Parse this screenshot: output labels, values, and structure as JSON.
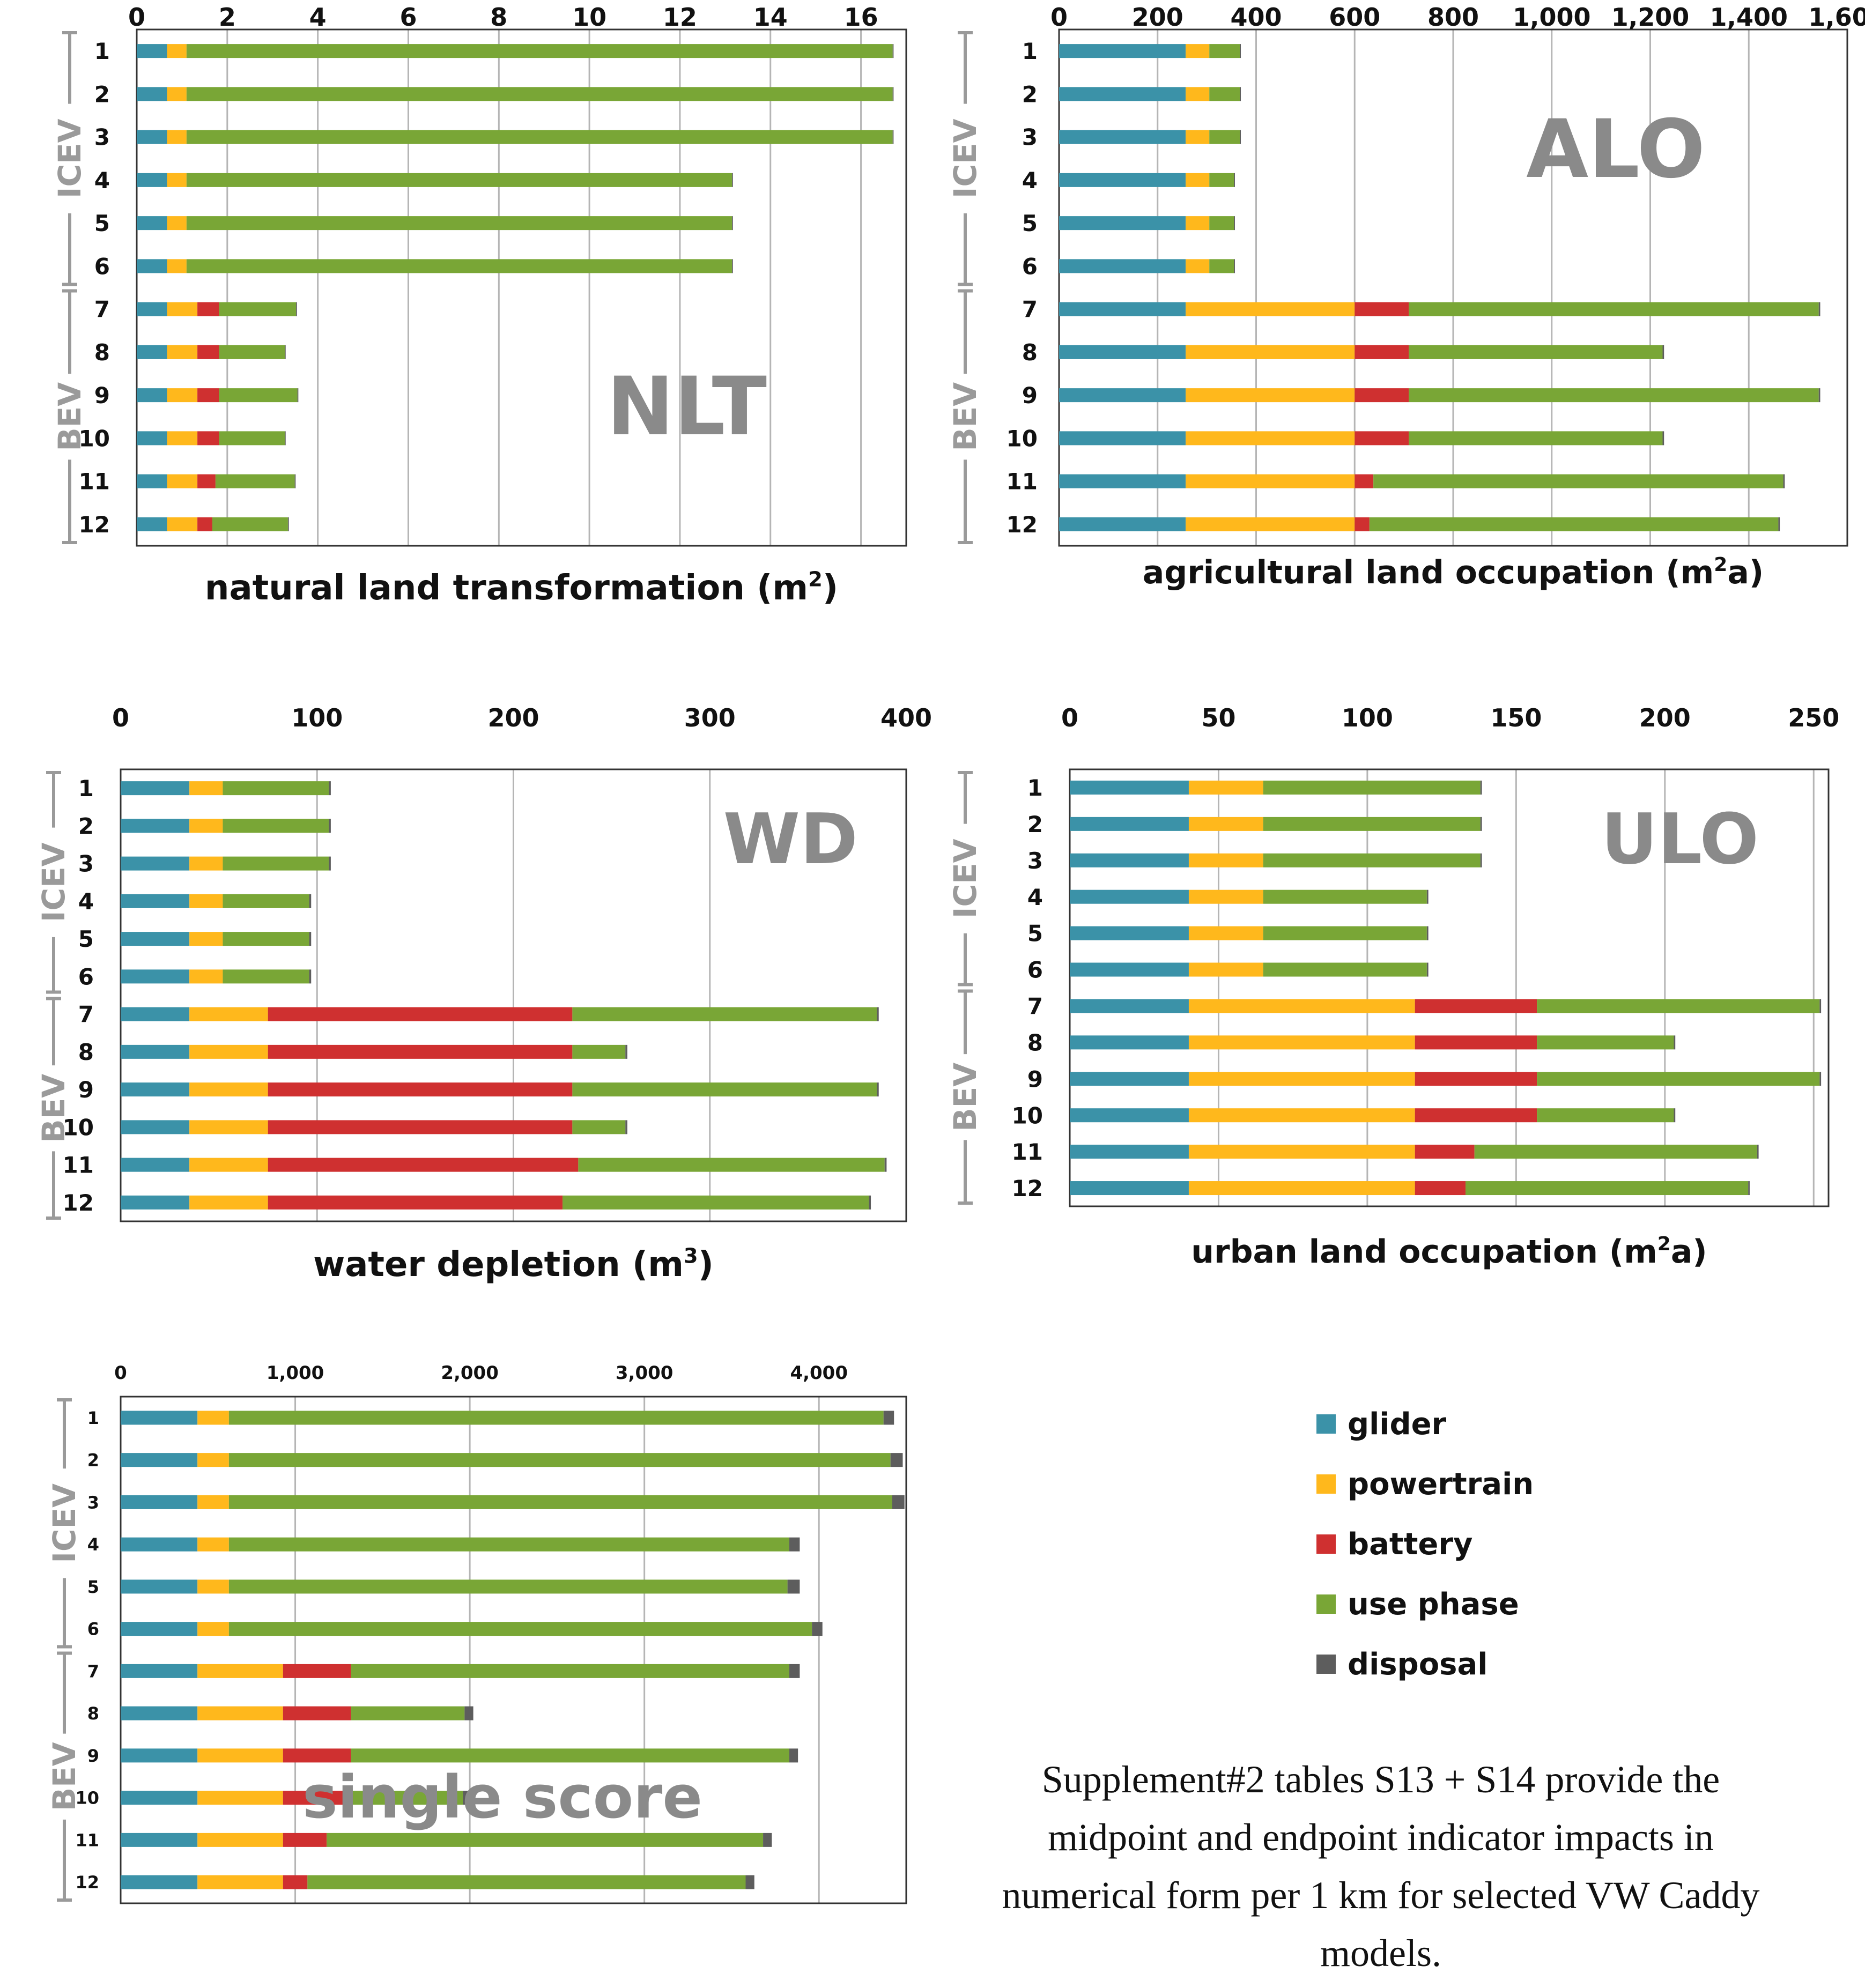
{
  "colors": {
    "glider": "#3b92a8",
    "powertrain": "#ffb81c",
    "battery": "#cf3030",
    "use_phase": "#79a636",
    "disposal": "#5d5d5d"
  },
  "legend": [
    {
      "label": "glider",
      "color": "#3b92a8"
    },
    {
      "label": "powertrain",
      "color": "#ffb81c"
    },
    {
      "label": "battery",
      "color": "#cf3030"
    },
    {
      "label": "use phase",
      "color": "#79a636"
    },
    {
      "label": "disposal",
      "color": "#5d5d5d"
    }
  ],
  "caption": "Supplement#2 tables S13 + S14 provide the midpoint and endpoint indicator impacts in numerical form per 1 km for selected VW Caddy models.",
  "chart_data": [
    {
      "type": "bar",
      "orientation": "horizontal",
      "stacked": true,
      "abbreviation": "NLT",
      "xlabel": "natural land transformation (m",
      "xlabel_sup": "2",
      "xlabel_end": ")",
      "xlim": [
        0,
        17
      ],
      "xticks": [
        0,
        2,
        4,
        6,
        8,
        10,
        12,
        14,
        16
      ],
      "tick_labels": [
        "0",
        "2",
        "4",
        "6",
        "8",
        "10",
        "12",
        "14",
        "16"
      ],
      "categories": [
        "1",
        "2",
        "3",
        "4",
        "5",
        "6",
        "7",
        "8",
        "9",
        "10",
        "11",
        "12"
      ],
      "groups": [
        {
          "label": "ICEV",
          "from": 1,
          "to": 6
        },
        {
          "label": "BEV",
          "from": 7,
          "to": 12
        }
      ],
      "series": [
        {
          "name": "glider",
          "values": [
            0.67,
            0.67,
            0.67,
            0.67,
            0.67,
            0.67,
            0.67,
            0.67,
            0.67,
            0.67,
            0.67,
            0.67
          ]
        },
        {
          "name": "powertrain",
          "values": [
            0.43,
            0.43,
            0.43,
            0.43,
            0.43,
            0.43,
            0.67,
            0.67,
            0.67,
            0.67,
            0.67,
            0.67
          ]
        },
        {
          "name": "battery",
          "values": [
            0,
            0,
            0,
            0,
            0,
            0,
            0.48,
            0.48,
            0.48,
            0.48,
            0.4,
            0.33
          ]
        },
        {
          "name": "use phase",
          "values": [
            15.6,
            15.6,
            15.6,
            12.05,
            12.05,
            12.05,
            1.7,
            1.45,
            1.73,
            1.45,
            1.75,
            1.67
          ]
        },
        {
          "name": "disposal",
          "values": [
            0.02,
            0.02,
            0.02,
            0.02,
            0.02,
            0.02,
            0.02,
            0.02,
            0.02,
            0.02,
            0.02,
            0.02
          ]
        }
      ]
    },
    {
      "type": "bar",
      "orientation": "horizontal",
      "stacked": true,
      "abbreviation": "ALO",
      "xlabel": "agricultural land occupation (m",
      "xlabel_sup": "2",
      "xlabel_end": "a)",
      "xlim": [
        0,
        1600
      ],
      "xticks": [
        0,
        200,
        400,
        600,
        800,
        1000,
        1200,
        1400,
        1600
      ],
      "tick_labels": [
        "0",
        "200",
        "400",
        "600",
        "800",
        "1,000",
        "1,200",
        "1,400",
        "1,600"
      ],
      "categories": [
        "1",
        "2",
        "3",
        "4",
        "5",
        "6",
        "7",
        "8",
        "9",
        "10",
        "11",
        "12"
      ],
      "groups": [
        {
          "label": "ICEV",
          "from": 1,
          "to": 6
        },
        {
          "label": "BEV",
          "from": 7,
          "to": 12
        }
      ],
      "series": [
        {
          "name": "glider",
          "values": [
            257,
            257,
            257,
            257,
            257,
            257,
            257,
            257,
            257,
            257,
            257,
            257
          ]
        },
        {
          "name": "powertrain",
          "values": [
            48,
            48,
            48,
            48,
            48,
            48,
            343,
            343,
            343,
            343,
            343,
            343
          ]
        },
        {
          "name": "battery",
          "values": [
            0,
            0,
            0,
            0,
            0,
            0,
            110,
            110,
            110,
            110,
            38,
            30
          ]
        },
        {
          "name": "use phase",
          "values": [
            62,
            62,
            62,
            50,
            50,
            50,
            832,
            515,
            832,
            515,
            832,
            830
          ]
        },
        {
          "name": "disposal",
          "values": [
            2,
            2,
            2,
            2,
            2,
            2,
            3,
            3,
            3,
            3,
            3,
            3
          ]
        }
      ]
    },
    {
      "type": "bar",
      "orientation": "horizontal",
      "stacked": true,
      "abbreviation": "WD",
      "xlabel": "water depletion (m",
      "xlabel_sup": "3",
      "xlabel_end": ")",
      "xlim": [
        0,
        400
      ],
      "xticks": [
        0,
        100,
        200,
        300,
        400
      ],
      "tick_labels": [
        "0",
        "100",
        "200",
        "300",
        "400"
      ],
      "categories": [
        "1",
        "2",
        "3",
        "4",
        "5",
        "6",
        "7",
        "8",
        "9",
        "10",
        "11",
        "12"
      ],
      "groups": [
        {
          "label": "ICEV",
          "from": 1,
          "to": 6
        },
        {
          "label": "BEV",
          "from": 7,
          "to": 12
        }
      ],
      "series": [
        {
          "name": "glider",
          "values": [
            35,
            35,
            35,
            35,
            35,
            35,
            35,
            35,
            35,
            35,
            35,
            35
          ]
        },
        {
          "name": "powertrain",
          "values": [
            17,
            17,
            17,
            17,
            17,
            17,
            40,
            40,
            40,
            40,
            40,
            40
          ]
        },
        {
          "name": "battery",
          "values": [
            0,
            0,
            0,
            0,
            0,
            0,
            155,
            155,
            155,
            155,
            158,
            150
          ]
        },
        {
          "name": "use phase",
          "values": [
            54,
            54,
            54,
            44,
            44,
            44,
            155,
            27,
            155,
            27,
            156,
            156
          ]
        },
        {
          "name": "disposal",
          "values": [
            1,
            1,
            1,
            1,
            1,
            1,
            1,
            1,
            1,
            1,
            1,
            1
          ]
        }
      ]
    },
    {
      "type": "bar",
      "orientation": "horizontal",
      "stacked": true,
      "abbreviation": "ULO",
      "xlabel": "urban land occupation (m",
      "xlabel_sup": "2",
      "xlabel_end": "a)",
      "xlim": [
        0,
        255
      ],
      "xticks": [
        0,
        50,
        100,
        150,
        200,
        250
      ],
      "tick_labels": [
        "0",
        "50",
        "100",
        "150",
        "200",
        "250"
      ],
      "categories": [
        "1",
        "2",
        "3",
        "4",
        "5",
        "6",
        "7",
        "8",
        "9",
        "10",
        "11",
        "12"
      ],
      "groups": [
        {
          "label": "ICEV",
          "from": 1,
          "to": 6
        },
        {
          "label": "BEV",
          "from": 7,
          "to": 12
        }
      ],
      "series": [
        {
          "name": "glider",
          "values": [
            40,
            40,
            40,
            40,
            40,
            40,
            40,
            40,
            40,
            40,
            40,
            40
          ]
        },
        {
          "name": "powertrain",
          "values": [
            25,
            25,
            25,
            25,
            25,
            25,
            76,
            76,
            76,
            76,
            76,
            76
          ]
        },
        {
          "name": "battery",
          "values": [
            0,
            0,
            0,
            0,
            0,
            0,
            41,
            41,
            41,
            41,
            20,
            17
          ]
        },
        {
          "name": "use phase",
          "values": [
            73,
            73,
            73,
            55,
            55,
            55,
            95,
            46,
            95,
            46,
            95,
            95
          ]
        },
        {
          "name": "disposal",
          "values": [
            0.5,
            0.5,
            0.5,
            0.5,
            0.5,
            0.5,
            0.5,
            0.5,
            0.5,
            0.5,
            0.5,
            0.5
          ]
        }
      ]
    },
    {
      "type": "bar",
      "orientation": "horizontal",
      "stacked": true,
      "abbreviation": "single score",
      "xlabel": "",
      "xlabel_sup": "",
      "xlabel_end": "",
      "xlim": [
        0,
        4500
      ],
      "xticks": [
        0,
        1000,
        2000,
        3000,
        4000
      ],
      "tick_labels": [
        "0",
        "1,000",
        "2,000",
        "3,000",
        "4,000"
      ],
      "categories": [
        "1",
        "2",
        "3",
        "4",
        "5",
        "6",
        "7",
        "8",
        "9",
        "10",
        "11",
        "12"
      ],
      "groups": [
        {
          "label": "ICEV",
          "from": 1,
          "to": 6
        },
        {
          "label": "BEV",
          "from": 7,
          "to": 12
        }
      ],
      "series": [
        {
          "name": "glider",
          "values": [
            440,
            440,
            440,
            440,
            440,
            440,
            440,
            440,
            440,
            440,
            440,
            440
          ]
        },
        {
          "name": "powertrain",
          "values": [
            180,
            180,
            180,
            180,
            180,
            180,
            490,
            490,
            490,
            490,
            490,
            490
          ]
        },
        {
          "name": "battery",
          "values": [
            0,
            0,
            0,
            0,
            0,
            0,
            390,
            390,
            390,
            390,
            250,
            140
          ]
        },
        {
          "name": "use phase",
          "values": [
            3750,
            3790,
            3800,
            3210,
            3200,
            3340,
            2510,
            650,
            2510,
            640,
            2500,
            2510
          ]
        },
        {
          "name": "disposal",
          "values": [
            60,
            70,
            70,
            60,
            70,
            60,
            60,
            50,
            50,
            60,
            50,
            50
          ]
        }
      ]
    }
  ]
}
